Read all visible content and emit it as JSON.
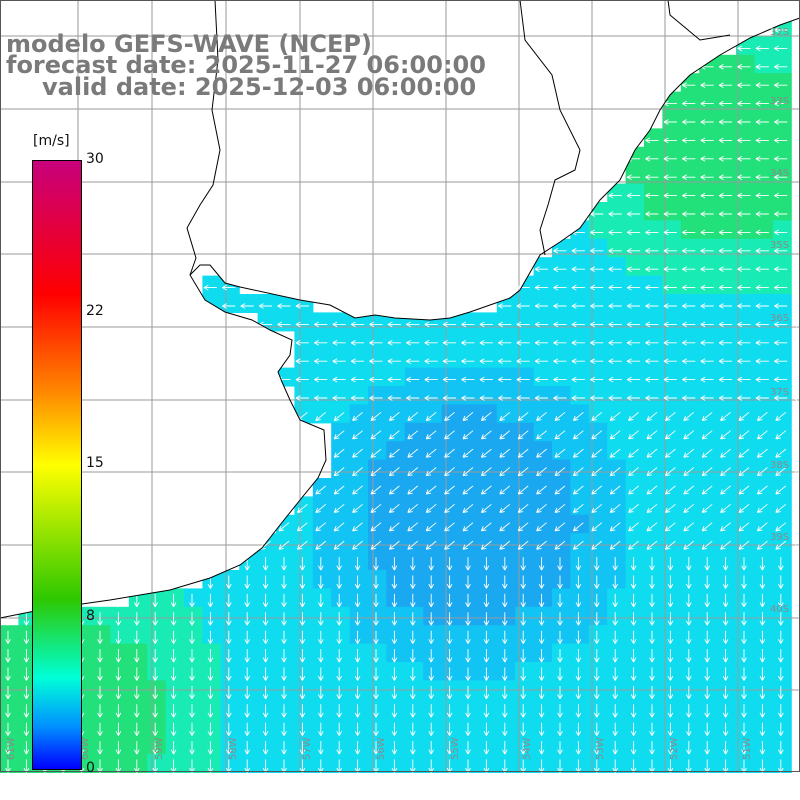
{
  "title": {
    "line1": "modelo GEFS-WAVE (NCEP)",
    "line2": "forecast date: 2025-11-27 06:00:00",
    "line3": "valid date: 2025-12-03 06:00:00"
  },
  "colorbar": {
    "unit": "[m/s]",
    "ticks": [
      "30",
      "22",
      "15",
      "8",
      "0"
    ],
    "tick_values": [
      30,
      22,
      15,
      8,
      0
    ],
    "range": [
      0,
      30
    ],
    "colors": [
      "#c8007c",
      "#ff0000",
      "#ff8800",
      "#ffff00",
      "#2ec800",
      "#00ffd8",
      "#0090ff",
      "#0000ff"
    ]
  },
  "map": {
    "lat_labels": [
      "32S",
      "33S",
      "34S",
      "35S",
      "36S",
      "37S",
      "38S",
      "39S",
      "40S"
    ],
    "lon_labels": [
      "61W",
      "60W",
      "59W",
      "58W",
      "57W",
      "56W",
      "55W",
      "54W",
      "53W",
      "52W",
      "51W"
    ],
    "land_color": "#ffffff",
    "coast_color": "#000000",
    "grid_color": "#9a9a9a",
    "arrow_color": "#ffffff"
  }
}
